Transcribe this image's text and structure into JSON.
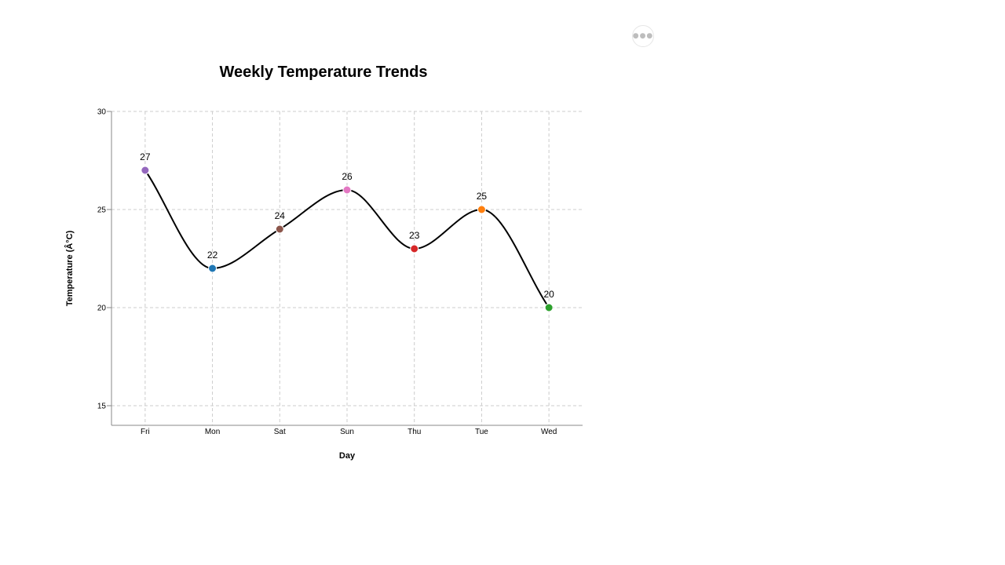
{
  "menu": {
    "icon": "more-horizontal-icon",
    "glyph": "●●●"
  },
  "chart_data": {
    "type": "line",
    "title": "Weekly Temperature Trends",
    "xlabel": "Day",
    "ylabel": "Temperature (Â°C)",
    "categories": [
      "Fri",
      "Mon",
      "Sat",
      "Sun",
      "Thu",
      "Tue",
      "Wed"
    ],
    "values": [
      27,
      22,
      24,
      26,
      23,
      25,
      20
    ],
    "point_colors": [
      "#9467bd",
      "#1f77b4",
      "#8c564b",
      "#e377c2",
      "#d62728",
      "#ff7f0e",
      "#2ca02c"
    ],
    "line_color": "#000000",
    "ylim": [
      14,
      30
    ],
    "yticks": [
      15,
      20,
      25,
      30
    ],
    "grid": true,
    "data_labels": true
  }
}
